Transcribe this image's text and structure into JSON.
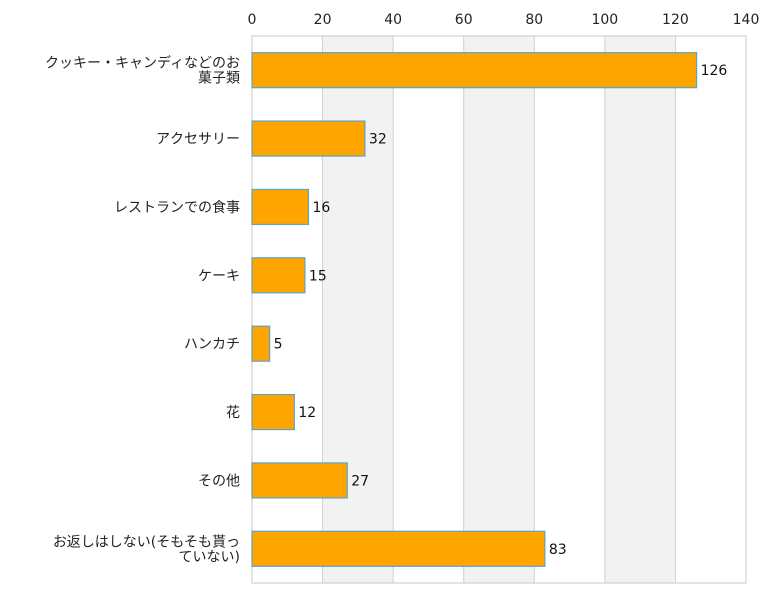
{
  "chart_data": {
    "type": "bar",
    "orientation": "horizontal",
    "title": "",
    "xlabel": "",
    "ylabel": "",
    "xlim": [
      0,
      140
    ],
    "ticks": [
      0,
      20,
      40,
      60,
      80,
      100,
      120,
      140
    ],
    "tick_labels": [
      "0",
      "20",
      "40",
      "60",
      "80",
      "100",
      "120",
      "140"
    ],
    "grid": true,
    "legend": "none",
    "categories": [
      [
        "クッキー・キャンディなどのお",
        "菓子類"
      ],
      [
        "アクセサリー"
      ],
      [
        "レストランでの食事"
      ],
      [
        "ケーキ"
      ],
      [
        "ハンカチ"
      ],
      [
        "花"
      ],
      [
        "その他"
      ],
      [
        "お返しはしない(そもそも貰っ",
        "ていない)"
      ]
    ],
    "values": [
      126,
      32,
      16,
      15,
      5,
      12,
      27,
      83
    ],
    "value_labels": [
      "126",
      "32",
      "16",
      "15",
      "5",
      "12",
      "27",
      "83"
    ],
    "colors": {
      "bar_fill": "#FFA500",
      "bar_stroke": "#5BA3C9",
      "band": "#F2F2F2",
      "grid": "#D0D0D0",
      "frame": "#C8C8C8"
    }
  }
}
